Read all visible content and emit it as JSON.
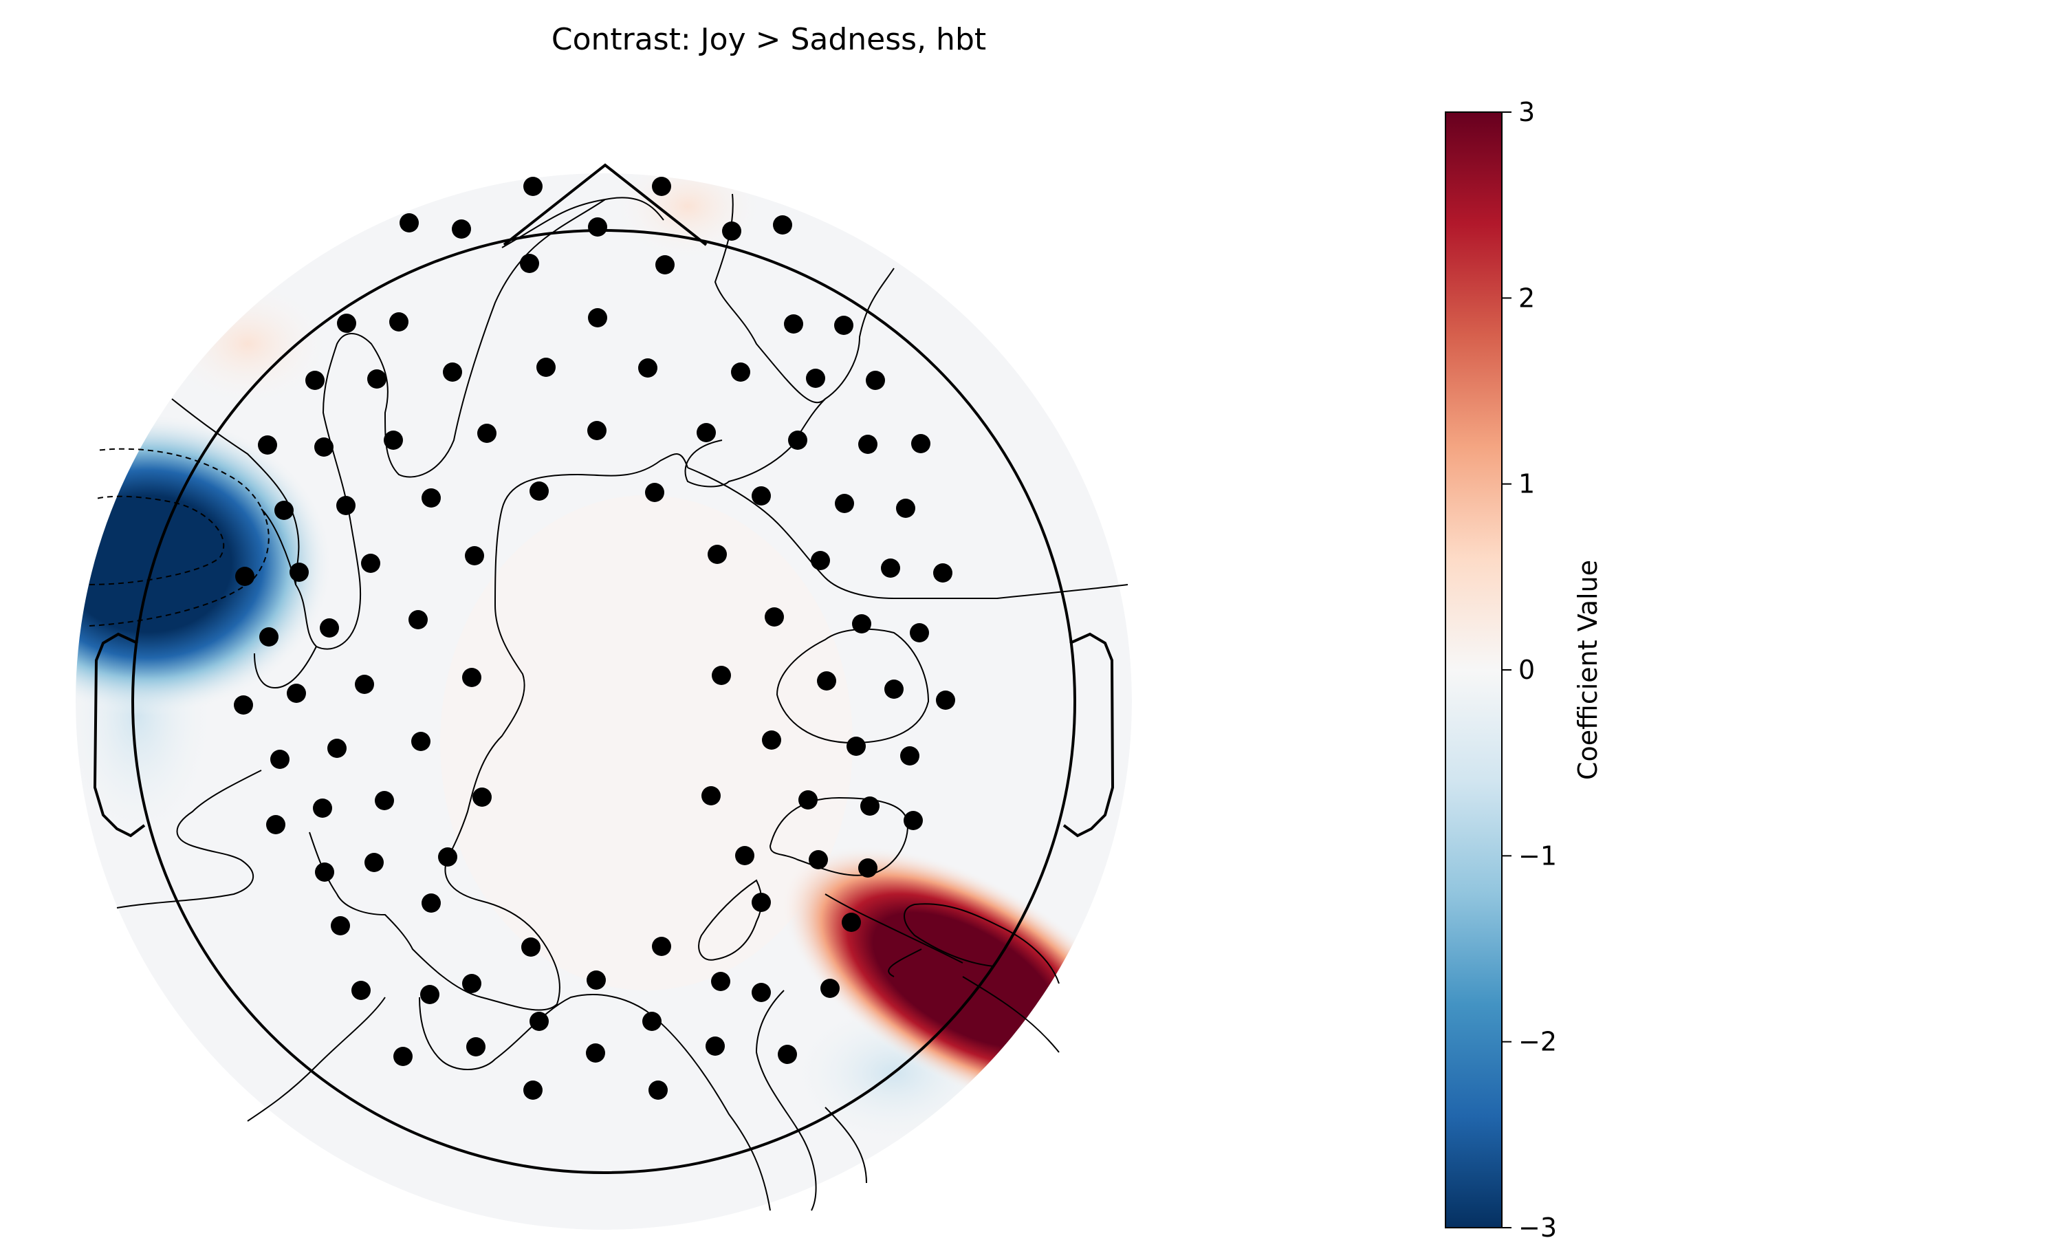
{
  "chart_data": {
    "type": "heatmap",
    "title": "Contrast: Joy > Sadness, hbt",
    "colorbar": {
      "label": "Coefficient Value",
      "min": -3,
      "max": 3,
      "colormap": "RdBu_r",
      "ticks": [
        3,
        2,
        1,
        0,
        -1,
        -2,
        -3
      ],
      "tick_labels": [
        "3",
        "2",
        "1",
        "0",
        "−1",
        "−2",
        "−3"
      ]
    },
    "extrema": [
      {
        "sign": "negative",
        "value": -3,
        "region": "left-temporal"
      },
      {
        "sign": "positive",
        "value": 3,
        "region": "right-posterior-temporal"
      }
    ],
    "sensors_count": 103,
    "colors": {
      "negative_peak": "#053061",
      "positive_peak": "#67001f",
      "neutral": "#f7f7f7",
      "sensor": "#000000"
    }
  }
}
